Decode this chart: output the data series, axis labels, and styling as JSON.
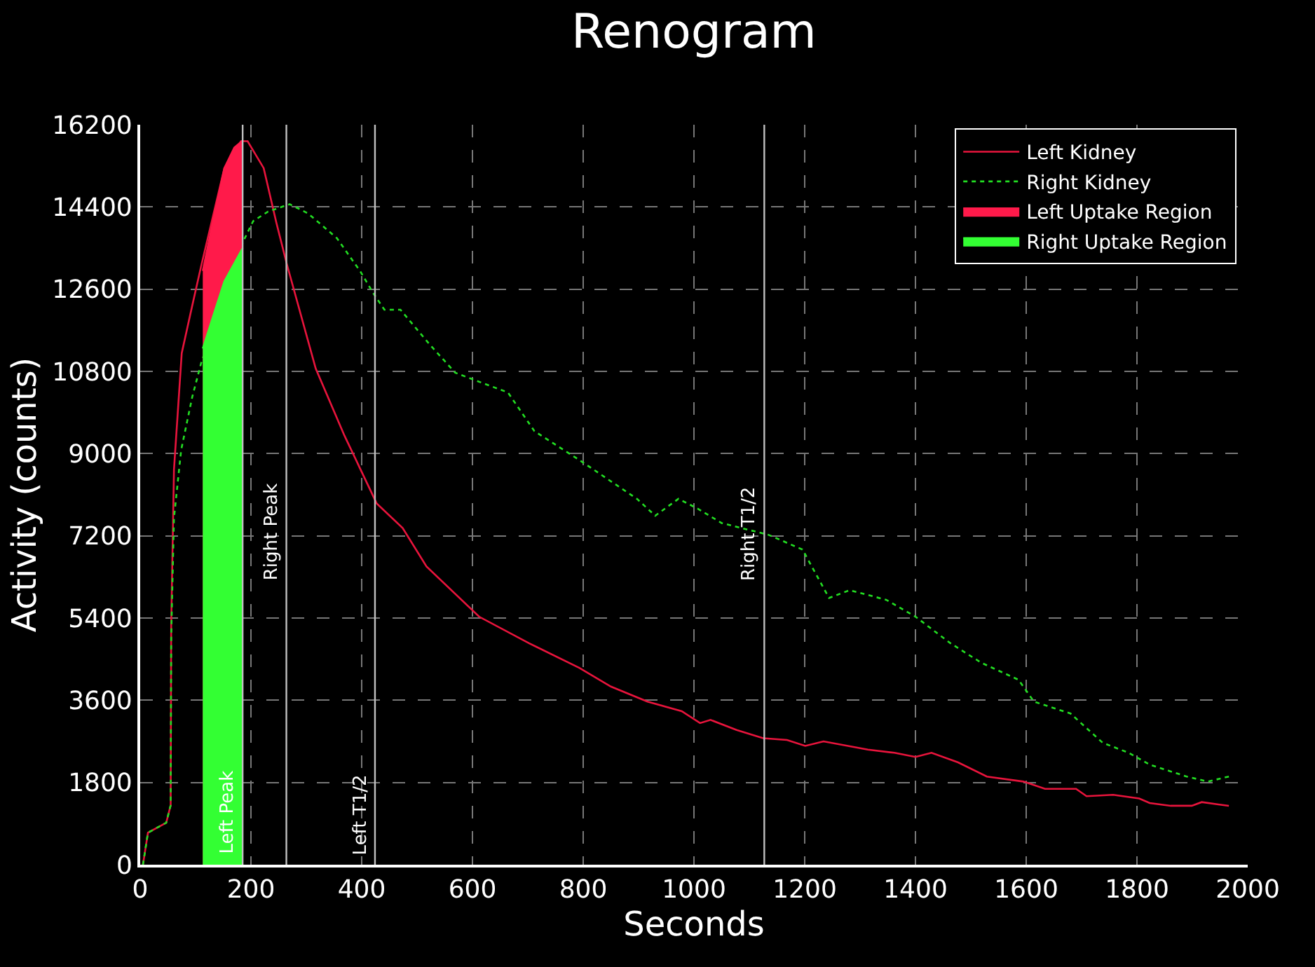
{
  "chart_data": {
    "type": "line",
    "title": "Renogram",
    "xlabel": "Seconds",
    "ylabel": "Activity (counts)",
    "xlim": [
      0,
      2000
    ],
    "xticks": [
      0,
      200,
      400,
      600,
      800,
      1000,
      1200,
      1400,
      1600,
      1800,
      2000
    ],
    "ylim": [
      0,
      16200
    ],
    "yticks": [
      0,
      1800,
      3600,
      5400,
      7200,
      9000,
      10800,
      12600,
      14400,
      16200
    ],
    "grid": true,
    "legend": "top right",
    "marker": "none",
    "series": [
      {
        "name": "Left Kidney",
        "color": "#e8143c",
        "line_style": "solid",
        "x": [
          5,
          14,
          47,
          55,
          56,
          61,
          75,
          94,
          110,
          152,
          182,
          194,
          223,
          246,
          265,
          317,
          369,
          427,
          474,
          517,
          612,
          702,
          793,
          850,
          916,
          978,
          1011,
          1030,
          1077,
          1125,
          1168,
          1201,
          1234,
          1314,
          1362,
          1400,
          1429,
          1477,
          1529,
          1595,
          1634,
          1690,
          1709,
          1757,
          1804,
          1823,
          1861,
          1899,
          1917,
          1947,
          1966
        ],
        "values": [
          0,
          700,
          920,
          1300,
          5260,
          8650,
          11200,
          12240,
          13100,
          15250,
          15840,
          15840,
          15250,
          14050,
          13140,
          10860,
          9390,
          7910,
          7370,
          6530,
          5430,
          4850,
          4310,
          3900,
          3570,
          3360,
          3100,
          3170,
          2950,
          2770,
          2730,
          2600,
          2700,
          2520,
          2450,
          2360,
          2450,
          2240,
          1930,
          1820,
          1660,
          1660,
          1500,
          1530,
          1450,
          1350,
          1290,
          1290,
          1370,
          1320,
          1290
        ]
      },
      {
        "name": "Right Kidney",
        "color": "#22dd22",
        "line_style": "dotted",
        "x": [
          5,
          14,
          47,
          55,
          56,
          61,
          74,
          94,
          110,
          185,
          204,
          231,
          270,
          303,
          355,
          398,
          421,
          441,
          470,
          522,
          569,
          617,
          664,
          712,
          793,
          897,
          930,
          972,
          1006,
          1050,
          1135,
          1196,
          1244,
          1281,
          1347,
          1400,
          1463,
          1519,
          1586,
          1614,
          1680,
          1738,
          1785,
          1823,
          1890,
          1928,
          1966
        ],
        "values": [
          0,
          700,
          920,
          1300,
          5000,
          7590,
          9080,
          10240,
          10980,
          13620,
          14090,
          14300,
          14460,
          14260,
          13720,
          12980,
          12510,
          12150,
          12150,
          11400,
          10770,
          10550,
          10340,
          9490,
          8860,
          8010,
          7640,
          8010,
          7800,
          7480,
          7220,
          6900,
          5840,
          6010,
          5800,
          5430,
          4850,
          4420,
          4050,
          3570,
          3310,
          2670,
          2450,
          2190,
          1930,
          1820,
          1930
        ]
      },
      {
        "name": "Left Uptake Region",
        "type": "area",
        "color": "#ff1a4a",
        "x": [
          113,
          130,
          152,
          170,
          185
        ],
        "values": [
          13000,
          14000,
          15250,
          15700,
          15850
        ]
      },
      {
        "name": "Right Uptake Region",
        "type": "area",
        "color": "#33ff33",
        "x": [
          113,
          132,
          152,
          185
        ],
        "values": [
          11300,
          12020,
          12770,
          13500
        ]
      }
    ],
    "ref_lines": [
      {
        "axis": "x",
        "value": 185,
        "label": "Left Peak",
        "color": "#c0c0c0"
      },
      {
        "axis": "x",
        "value": 264,
        "label": "Right Peak",
        "color": "#c0c0c0"
      },
      {
        "axis": "x",
        "value": 424,
        "label": "Left T1/2",
        "color": "#c0c0c0"
      },
      {
        "axis": "x",
        "value": 1127,
        "label": "Right T1/2",
        "color": "#c0c0c0"
      }
    ]
  }
}
